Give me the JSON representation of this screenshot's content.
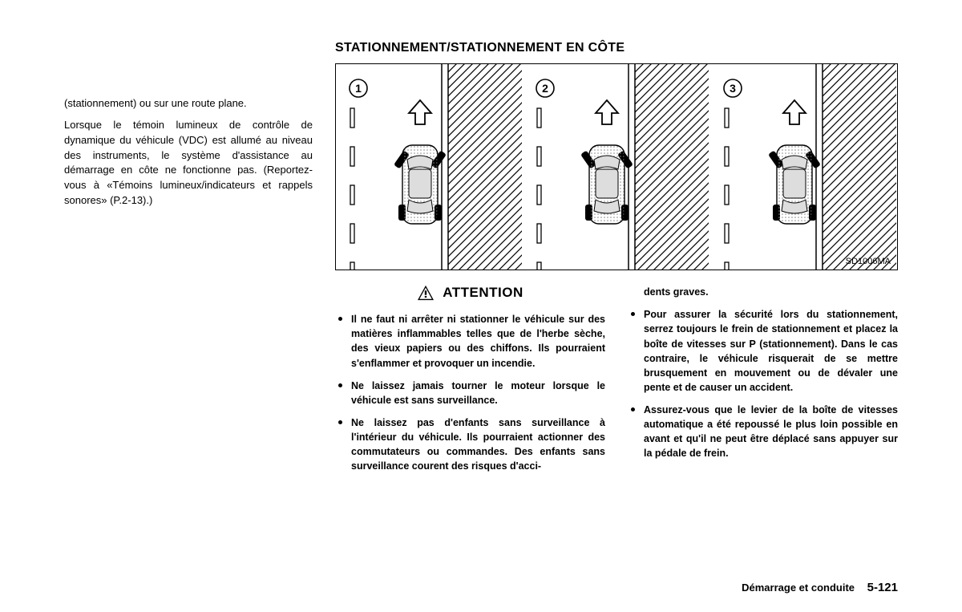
{
  "leftColumn": {
    "para1": "(stationnement) ou sur une route plane.",
    "para2": "Lorsque le témoin lumineux de contrôle de dynamique du véhicule (VDC) est allumé au niveau des instruments, le système d'assistance au démarrage en côte ne fonctionne pas. (Reportez-vous à «Témoins lumineux/indicateurs et rappels sonores» (P.2-13).)"
  },
  "sectionTitle": "STATIONNEMENT/STATIONNEMENT EN CÔTE",
  "diagram": {
    "figref": "SD1006MA",
    "panels": [
      {
        "num": "1",
        "wheel_angle": 35
      },
      {
        "num": "2",
        "wheel_angle": -35
      },
      {
        "num": "3",
        "wheel_angle": -35
      }
    ],
    "colors": {
      "car_fill": "#bfbfbf",
      "car_stroke": "#000000",
      "wheel_stroke": "#000000",
      "hatch": "#000000",
      "lane_dash": "#000000",
      "arrow_fill": "#ffffff",
      "arrow_stroke": "#000000"
    }
  },
  "attention": {
    "label": "ATTENTION",
    "items_left": [
      "Il ne faut ni arrêter ni stationner le véhicule sur des matières inflammables telles que de l'herbe sèche, des vieux papiers ou des chiffons. Ils pourraient s'enflammer et provoquer un incendie.",
      "Ne laissez jamais tourner le moteur lorsque le véhicule est sans surveillance.",
      "Ne laissez pas d'enfants sans surveillance à l'intérieur du véhicule. Ils pourraient actionner des commutateurs ou commandes. Des enfants sans surveillance courent des risques d'acci-"
    ],
    "cont_first": "dents graves.",
    "items_right": [
      "Pour assurer la sécurité lors du stationnement, serrez toujours le frein de stationnement et placez la boîte de vitesses sur P (stationnement). Dans le cas contraire, le véhicule risquerait de se mettre brusquement en mouvement ou de dévaler une pente et de causer un accident.",
      "Assurez-vous que le levier de la boîte de vitesses automatique a été repoussé le plus loin possible en avant et qu'il ne peut être déplacé sans appuyer sur la pédale de frein."
    ]
  },
  "footer": {
    "chapter": "Démarrage et conduite",
    "page": "5-121"
  }
}
